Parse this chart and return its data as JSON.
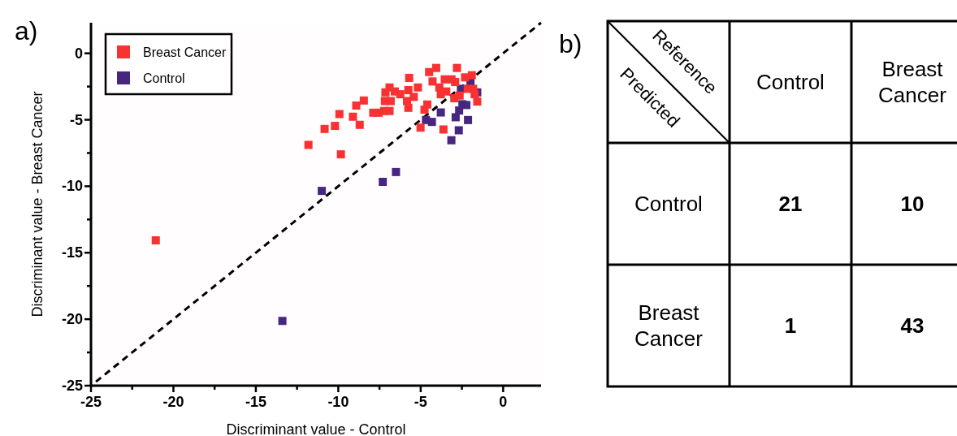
{
  "chart_data": [
    {
      "type": "scatter",
      "xlabel": "Discriminant value - Control",
      "ylabel": "Discriminant value - Breast Cancer",
      "annotations": [
        "a)"
      ],
      "xlim": [
        -25,
        2.3
      ],
      "ylim": [
        -25,
        2.3
      ],
      "xticks": [
        -25,
        {
          "value": -22.5,
          "label": null
        },
        -20,
        {
          "value": -17.5,
          "label": null
        },
        -15,
        {
          "value": -12.5,
          "label": null
        },
        -10,
        {
          "value": -7.5,
          "label": null
        },
        -5,
        {
          "value": -2.5,
          "label": null
        },
        0
      ],
      "yticks": [
        -25,
        {
          "value": -22.5,
          "label": null
        },
        -20,
        {
          "value": -17.5,
          "label": null
        },
        -15,
        {
          "value": -12.5,
          "label": null
        },
        -10,
        {
          "value": -7.5,
          "label": null
        },
        -5,
        {
          "value": -2.5,
          "label": null
        },
        0
      ],
      "grid": false,
      "legend": "top left",
      "series": [
        {
          "name": "Breast Cancer",
          "color": "#f83232",
          "marker": "square",
          "x": [
            -10.83,
            -10.2,
            -9.93,
            -9.84,
            -9.11,
            -8.91,
            -8.7,
            -8.45,
            -7.88,
            -7.55,
            -7.22,
            -6.89,
            -7.14,
            -6.89,
            -7.17,
            -6.82,
            -6.57,
            -6.24,
            -5.83,
            -5.75,
            -5.75,
            -5.7,
            -5.42,
            -5.17,
            -5.01,
            -4.77,
            -4.6,
            -4.49,
            -4.06,
            -4.28,
            -3.87,
            -3.78,
            -3.62,
            -3.54,
            -3.13,
            -3.45,
            -2.91,
            -2.8,
            -2.96,
            -2.64,
            -2.31,
            -1.9,
            -2.15,
            -1.82,
            -1.73,
            -1.57,
            -21.07,
            -11.81
          ],
          "values": [
            -5.69,
            -5.46,
            -4.57,
            -7.6,
            -4.77,
            -3.93,
            -5.38,
            -3.55,
            -4.47,
            -4.47,
            -4.34,
            -4.34,
            -2.94,
            -2.57,
            -3.59,
            -3.59,
            -2.87,
            -3.08,
            -3.59,
            -4.1,
            -2.77,
            -1.85,
            -3.28,
            -2.57,
            -5.59,
            -4.24,
            -3.85,
            -1.41,
            -1.1,
            -2.12,
            -2.57,
            -3.08,
            -5.73,
            -1.96,
            -1.96,
            -2.87,
            -2.16,
            -1.1,
            -3.38,
            -3.18,
            -1.81,
            -1.65,
            -2.67,
            -2.67,
            -3.08,
            -3.63,
            -14.07,
            -6.89
          ]
        },
        {
          "name": "Control",
          "color": "#47267f",
          "marker": "square",
          "x": [
            -11.0,
            -7.3,
            -6.5,
            -13.39,
            -4.68,
            -4.32,
            -3.78,
            -3.14,
            -2.88,
            -2.69,
            -2.67,
            -2.47,
            -2.23,
            -2.13,
            -2.56,
            -1.98,
            -1.57
          ],
          "values": [
            -10.35,
            -9.67,
            -8.93,
            -20.13,
            -5.02,
            -5.16,
            -4.45,
            -6.54,
            -4.81,
            -5.79,
            -4.3,
            -3.83,
            -3.89,
            -5.02,
            -2.67,
            -2.16,
            -2.94
          ]
        },
        {
          "type": "line",
          "color": "#000000",
          "line_style": "dashed",
          "marker": "none",
          "x": [
            -24.7,
            2.3
          ],
          "values": [
            -24.7,
            2.3
          ]
        }
      ]
    },
    {
      "type": "heatmap",
      "xlabel": "Reference",
      "ylabel": "Predicted",
      "annotations": [
        "b)"
      ],
      "categories": [
        "Control",
        "Breast Cancer"
      ],
      "y_categories": [
        "Control",
        "Breast Cancer"
      ],
      "cells": [
        [
          21,
          10
        ],
        [
          1,
          43
        ]
      ],
      "data_labels": true,
      "color": "#ffffff"
    }
  ]
}
